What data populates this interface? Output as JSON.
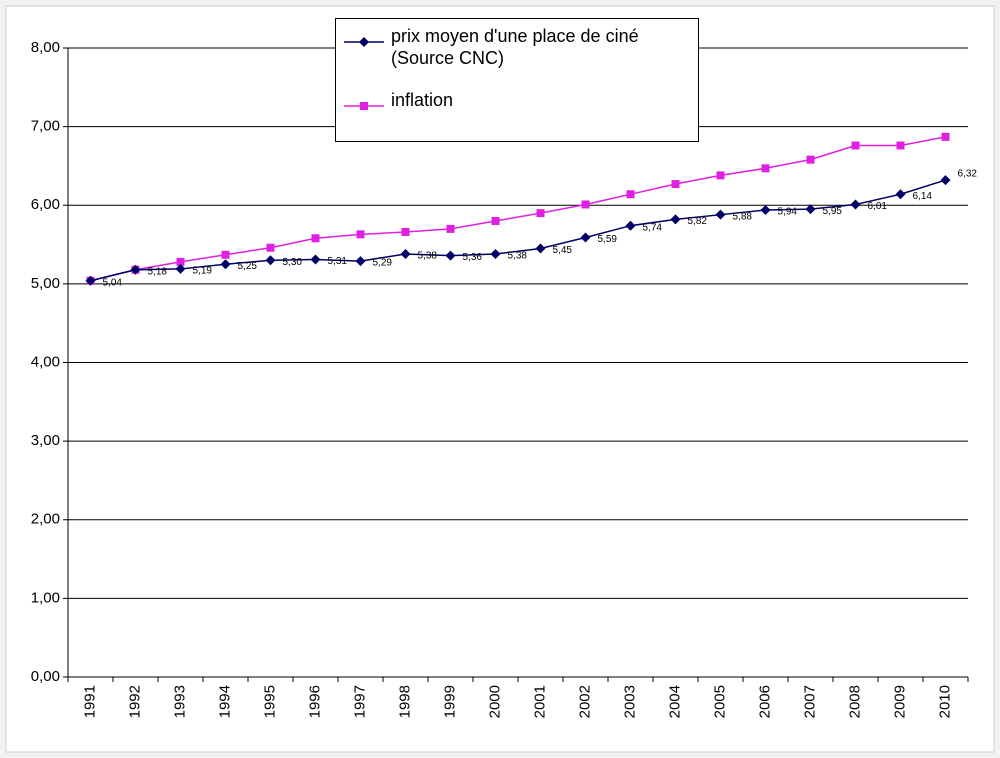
{
  "chart_data": {
    "type": "line",
    "categories": [
      "1991",
      "1992",
      "1993",
      "1994",
      "1995",
      "1996",
      "1997",
      "1998",
      "1999",
      "2000",
      "2001",
      "2002",
      "2003",
      "2004",
      "2005",
      "2006",
      "2007",
      "2008",
      "2009",
      "2010"
    ],
    "series": [
      {
        "name": "prix moyen d'une place de ciné (Source CNC)",
        "color": "#000066",
        "marker": "diamond",
        "values": [
          5.04,
          5.18,
          5.19,
          5.25,
          5.3,
          5.31,
          5.29,
          5.38,
          5.36,
          5.38,
          5.45,
          5.59,
          5.74,
          5.82,
          5.88,
          5.94,
          5.95,
          6.01,
          6.14,
          6.32
        ],
        "value_labels": [
          "5,04",
          "5,18",
          "5,19",
          "5,25",
          "5,30",
          "5,31",
          "5,29",
          "5,38",
          "5,36",
          "5,38",
          "5,45",
          "5,59",
          "5,74",
          "5,82",
          "5,88",
          "5,94",
          "5,95",
          "6,01",
          "6,14",
          "6,32"
        ]
      },
      {
        "name": "inflation",
        "color": "#e020e0",
        "marker": "square",
        "values": [
          5.04,
          5.18,
          5.28,
          5.37,
          5.46,
          5.58,
          5.63,
          5.66,
          5.7,
          5.8,
          5.9,
          6.01,
          6.14,
          6.27,
          6.38,
          6.47,
          6.58,
          6.76,
          6.76,
          6.87
        ]
      }
    ],
    "ylim": [
      0,
      8
    ],
    "yticks": [
      {
        "value": 0,
        "label": "0,00"
      },
      {
        "value": 1,
        "label": "1,00"
      },
      {
        "value": 2,
        "label": "2,00"
      },
      {
        "value": 3,
        "label": "3,00"
      },
      {
        "value": 4,
        "label": "4,00"
      },
      {
        "value": 5,
        "label": "5,00"
      },
      {
        "value": 6,
        "label": "6,00"
      },
      {
        "value": 7,
        "label": "7,00"
      },
      {
        "value": 8,
        "label": "8,00"
      }
    ],
    "grid": true,
    "legend": "top"
  }
}
